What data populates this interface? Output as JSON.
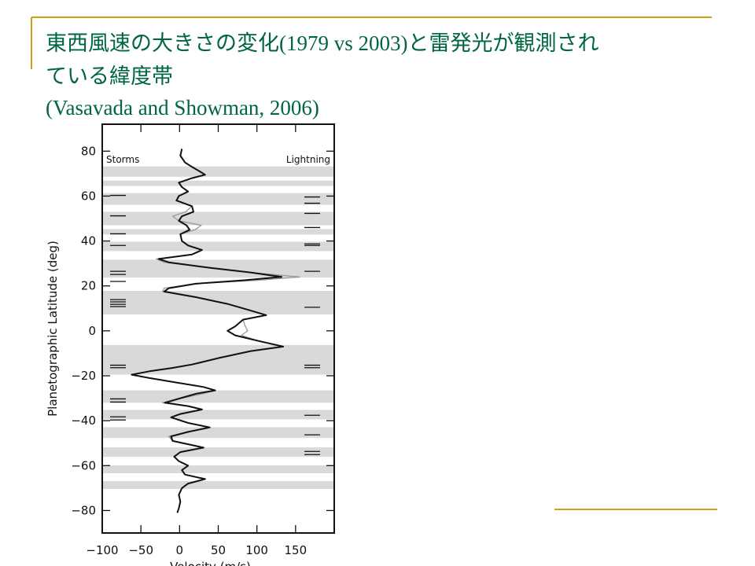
{
  "slide": {
    "title_lines": [
      "東西風速の大きさの変化(1979 vs 2003)と雷発光が観測され",
      "ている緯度帯"
    ],
    "citation": "(Vasavada and Showman, 2006)"
  },
  "chart_data": {
    "type": "line",
    "xlabel": "Velocity (m/s)",
    "ylabel": "Planetographic Latitude (deg)",
    "left_label": "Storms",
    "right_label": "Lightning",
    "xlim": [
      -100,
      200
    ],
    "xticks": [
      {
        "value": -100,
        "label": "−100"
      },
      {
        "value": -50,
        "label": "−50"
      },
      0,
      50,
      100,
      150
    ],
    "ylim": [
      -90,
      92
    ],
    "yticks": [
      {
        "value": -80,
        "label": "−80"
      },
      {
        "value": -60,
        "label": "−60"
      },
      {
        "value": -40,
        "label": "−40"
      },
      {
        "value": -20,
        "label": "−20"
      },
      0,
      20,
      40,
      60,
      80
    ],
    "band_color": "#d9d9d9",
    "bands": [
      [
        73.2,
        68.6
      ],
      [
        66.9,
        64.5
      ],
      [
        61.3,
        56.1
      ],
      [
        53,
        47
      ],
      [
        45.3,
        42.9
      ],
      [
        39.7,
        35.5
      ],
      [
        31.7,
        23.7
      ],
      [
        17.8,
        7.3
      ],
      [
        -6.3,
        -19.5
      ],
      [
        -26.5,
        -32
      ],
      [
        -35.2,
        -39.4
      ],
      [
        -42.9,
        -47.7
      ],
      [
        -51.9,
        -56.1
      ],
      [
        -59.9,
        -63.4
      ],
      [
        -66.9,
        -70.4
      ]
    ],
    "storms": [
      60.3,
      51.2,
      43.2,
      38,
      26.5,
      25.1,
      22,
      13.9,
      12.9,
      11.8,
      10.8,
      -15.3,
      -16.4,
      -30.3,
      -31.7,
      -38.3,
      -39.7
    ],
    "lightning": [
      59.6,
      56.8,
      52.3,
      46,
      38.7,
      38,
      26.5,
      10.5,
      -15.3,
      -16.4,
      -37.6,
      -46.3,
      -53.7,
      -55.1
    ],
    "y": [
      81,
      78,
      75,
      73,
      71,
      69.5,
      68,
      66,
      64,
      62,
      60,
      58,
      55.5,
      53,
      51,
      49,
      47,
      45,
      43,
      40,
      38,
      36,
      34,
      32,
      30.5,
      28,
      26,
      24,
      22.5,
      21,
      19,
      17.5,
      15,
      12,
      9,
      7,
      5,
      2,
      0,
      -2,
      -4.5,
      -7,
      -9,
      -12,
      -15,
      -16.5,
      -18,
      -19.5,
      -21,
      -23,
      -25,
      -26.5,
      -28,
      -30.5,
      -32,
      -33.5,
      -35,
      -37,
      -38.5,
      -41,
      -43,
      -45,
      -47,
      -49,
      -52,
      -54,
      -56,
      -58,
      -60,
      -62,
      -64,
      -66,
      -68,
      -70,
      -73,
      -76,
      -79,
      -81
    ],
    "series": [
      {
        "color": "#999999",
        "values": [
          null,
          1,
          7,
          16,
          26,
          33,
          16,
          -1,
          3,
          11,
          -1,
          -4,
          16,
          8,
          -9,
          -1,
          28,
          20,
          1,
          3,
          11,
          29,
          16,
          -30,
          -20,
          41,
          92,
          155,
          100,
          21,
          -20,
          -22,
          21,
          62,
          92,
          112,
          82,
          85,
          88,
          80,
          102,
          134,
          92,
          52,
          16,
          -9,
          -39,
          -62,
          -39,
          -4,
          31,
          46,
          30,
          -4,
          -22,
          11,
          29,
          1,
          -11,
          11,
          39,
          11,
          -14,
          -9,
          31,
          1,
          -7,
          -1,
          11,
          3,
          7,
          33,
          11,
          3,
          null,
          null,
          null,
          null
        ]
      },
      {
        "color": "#111111",
        "values": [
          3,
          1,
          7,
          16,
          26,
          33,
          16,
          -1,
          3,
          11,
          -1,
          -4,
          16,
          18,
          3,
          -1,
          9,
          13,
          1,
          3,
          11,
          29,
          16,
          -27,
          -14,
          41,
          92,
          132,
          82,
          21,
          -14,
          -20,
          21,
          62,
          92,
          112,
          82,
          72,
          62,
          72,
          102,
          134,
          92,
          52,
          16,
          -9,
          -39,
          -62,
          -39,
          -4,
          31,
          46,
          21,
          -4,
          -19,
          11,
          29,
          1,
          -11,
          11,
          39,
          11,
          -11,
          -9,
          31,
          1,
          -7,
          -1,
          11,
          3,
          7,
          33,
          11,
          3,
          -1,
          1,
          -1,
          -3
        ]
      }
    ]
  }
}
